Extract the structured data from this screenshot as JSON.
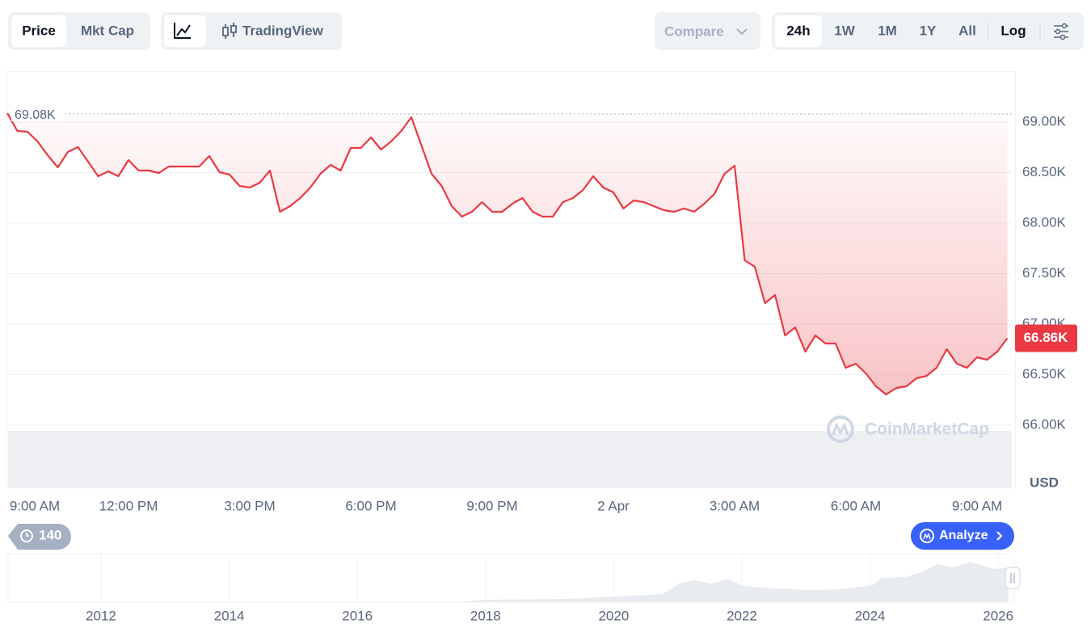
{
  "toolbar": {
    "price_tabs": [
      "Price",
      "Mkt Cap"
    ],
    "chart_tabs": [
      "TradingView"
    ],
    "compare": "Compare",
    "ranges": [
      "24h",
      "1W",
      "1M",
      "1Y",
      "All"
    ],
    "log": "Log"
  },
  "chart_data": {
    "type": "line",
    "color": "#ea3943",
    "x": [
      0,
      0.25,
      0.5,
      0.75,
      1,
      1.25,
      1.5,
      1.75,
      2,
      2.25,
      2.5,
      2.75,
      3,
      3.25,
      3.5,
      3.75,
      4,
      4.25,
      4.5,
      4.75,
      5,
      5.25,
      5.5,
      5.75,
      6,
      6.25,
      6.5,
      6.75,
      7,
      7.25,
      7.5,
      7.75,
      8,
      8.25,
      8.5,
      8.75,
      9,
      9.25,
      9.5,
      9.75,
      10,
      10.25,
      10.5,
      10.75,
      11,
      11.25,
      11.5,
      11.75,
      12,
      12.25,
      12.5,
      12.75,
      13,
      13.25,
      13.5,
      13.75,
      14,
      14.25,
      14.5,
      14.75,
      15,
      15.25,
      15.5,
      15.75,
      16,
      16.25,
      16.5,
      16.75,
      17,
      17.25,
      17.5,
      17.75,
      18,
      18.25,
      18.5,
      18.75,
      19,
      19.25,
      19.5,
      19.75,
      20,
      20.25,
      20.5,
      20.75,
      21,
      21.25,
      21.5,
      21.75,
      22,
      22.25,
      22.5,
      22.75,
      23,
      23.25,
      23.5,
      23.75,
      24,
      24.25,
      24.5,
      24.75
    ],
    "values": [
      69088,
      68912,
      68904,
      68808,
      68672,
      68552,
      68704,
      68752,
      68608,
      68464,
      68512,
      68464,
      68624,
      68520,
      68520,
      68496,
      68560,
      68560,
      68560,
      68560,
      68664,
      68504,
      68480,
      68368,
      68352,
      68400,
      68520,
      68112,
      68168,
      68248,
      68352,
      68488,
      68576,
      68520,
      68744,
      68744,
      68848,
      68728,
      68808,
      68912,
      69048,
      68768,
      68488,
      68368,
      68168,
      68064,
      68112,
      68208,
      68112,
      68112,
      68192,
      68248,
      68112,
      68064,
      68064,
      68208,
      68248,
      68328,
      68464,
      68352,
      68304,
      68144,
      68224,
      68208,
      68168,
      68128,
      68112,
      68144,
      68112,
      68192,
      68288,
      68488,
      68568,
      67632,
      67568,
      67208,
      67288,
      66888,
      66968,
      66728,
      66888,
      66808,
      66808,
      66568,
      66608,
      66512,
      66384,
      66304,
      66368,
      66384,
      66464,
      66488,
      66568,
      66752,
      66608,
      66568,
      66672,
      66648,
      66728,
      66860
    ],
    "xlim": [
      0,
      24.86
    ],
    "xticks": [
      {
        "value": 0,
        "label": "9:00 AM"
      },
      {
        "value": 3,
        "label": "12:00 PM"
      },
      {
        "value": 6,
        "label": "3:00 PM"
      },
      {
        "value": 9,
        "label": "6:00 PM"
      },
      {
        "value": 12,
        "label": "9:00 PM"
      },
      {
        "value": 15,
        "label": "2 Apr"
      },
      {
        "value": 18,
        "label": "3:00 AM"
      },
      {
        "value": 21,
        "label": "6:00 AM"
      },
      {
        "value": 24,
        "label": "9:00 AM"
      }
    ],
    "ylim": [
      65376,
      69488
    ],
    "yticks": [
      {
        "value": 69000,
        "label": "69.00K"
      },
      {
        "value": 68500,
        "label": "68.50K"
      },
      {
        "value": 68000,
        "label": "68.00K"
      },
      {
        "value": 67500,
        "label": "67.50K"
      },
      {
        "value": 67000,
        "label": "67.00K"
      },
      {
        "value": 66500,
        "label": "66.50K"
      },
      {
        "value": 66000,
        "label": "66.00K"
      }
    ],
    "y_unit": "USD",
    "grid": true,
    "log_scale": false,
    "high": {
      "value": 69080,
      "label": "69.08K"
    },
    "last_price": {
      "value": 66860,
      "label": "66.86K"
    },
    "watermark": "CoinMarketCap"
  },
  "footer": {
    "history_count": 140,
    "analyze": "Analyze"
  },
  "navigator": {
    "xlim": [
      2010.55,
      2026.25
    ],
    "xticks": [
      2012,
      2014,
      2016,
      2018,
      2020,
      2022,
      2024,
      2026
    ]
  }
}
